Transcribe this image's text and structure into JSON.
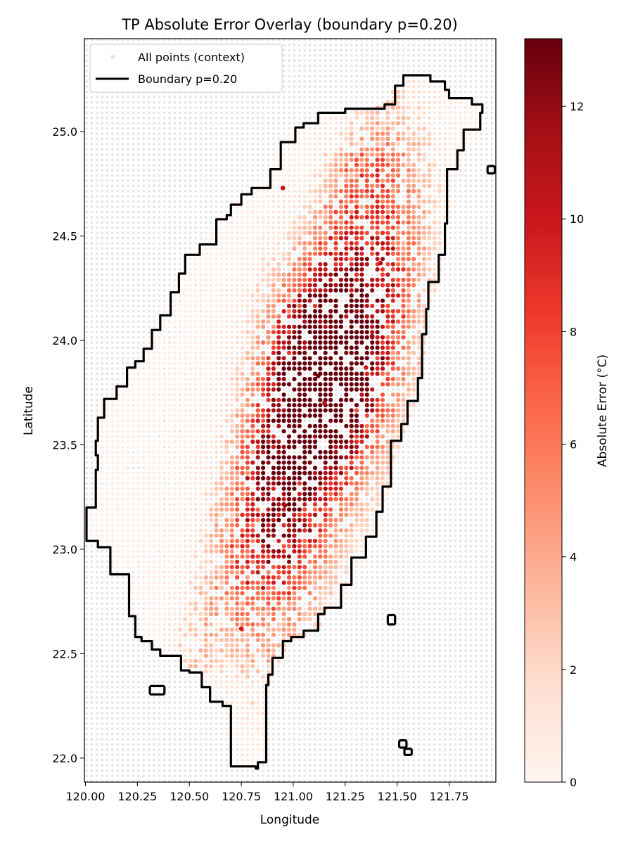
{
  "chart_data": {
    "type": "scatter",
    "title": "TP Absolute Error Overlay (boundary p=0.20)",
    "xlabel": "Longitude",
    "ylabel": "Latitude",
    "xlim": [
      119.995,
      121.975
    ],
    "ylim": [
      21.885,
      25.445
    ],
    "xticks": [
      120.0,
      120.25,
      120.5,
      120.75,
      121.0,
      121.25,
      121.5,
      121.75
    ],
    "xtick_labels": [
      "120.00",
      "120.25",
      "120.50",
      "120.75",
      "121.00",
      "121.25",
      "121.50",
      "121.75"
    ],
    "yticks": [
      22.0,
      22.5,
      23.0,
      23.5,
      24.0,
      24.5,
      25.0
    ],
    "ytick_labels": [
      "22.0",
      "22.5",
      "23.0",
      "23.5",
      "24.0",
      "24.5",
      "25.0"
    ],
    "grid": false,
    "legend": {
      "placement": "top-left",
      "entries": [
        {
          "label": "All points (context)",
          "color": "#e6e6e6"
        },
        {
          "label": "Boundary p=0.20",
          "color": "#000000"
        }
      ]
    },
    "colorbar": {
      "label": "Absolute Error (°C)",
      "range": [
        0,
        13.2
      ],
      "ticks": [
        0,
        2,
        4,
        6,
        8,
        10,
        12
      ],
      "tick_labels": [
        "0",
        "2",
        "4",
        "6",
        "8",
        "10",
        "12"
      ],
      "colormap": "Reds"
    },
    "grid_spacing_deg": 0.025,
    "series": [
      {
        "name": "All points (context)",
        "kind": "context-grid",
        "color": "#e6e6e6"
      },
      {
        "name": "Boundary p=0.20",
        "kind": "boundary-contour",
        "color": "#000000",
        "main_outline": [
          [
            120.005,
            23.04
          ],
          [
            120.06,
            23.04
          ],
          [
            120.06,
            23.01
          ],
          [
            120.12,
            23.01
          ],
          [
            120.16,
            22.88
          ],
          [
            120.21,
            22.88
          ],
          [
            120.24,
            22.68
          ],
          [
            120.27,
            22.58
          ],
          [
            120.32,
            22.56
          ],
          [
            120.36,
            22.52
          ],
          [
            120.46,
            22.49
          ],
          [
            120.5,
            22.42
          ],
          [
            120.56,
            22.41
          ],
          [
            120.6,
            22.34
          ],
          [
            120.66,
            22.27
          ],
          [
            120.7,
            22.25
          ],
          [
            120.71,
            21.96
          ],
          [
            120.82,
            21.96
          ],
          [
            120.83,
            21.95
          ],
          [
            120.87,
            21.98
          ],
          [
            120.88,
            22.35
          ],
          [
            120.9,
            22.4
          ],
          [
            120.95,
            22.48
          ],
          [
            120.99,
            22.56
          ],
          [
            121.05,
            22.58
          ],
          [
            121.12,
            22.61
          ],
          [
            121.15,
            22.69
          ],
          [
            121.23,
            22.72
          ],
          [
            121.28,
            22.83
          ],
          [
            121.35,
            22.96
          ],
          [
            121.4,
            23.06
          ],
          [
            121.43,
            23.18
          ],
          [
            121.47,
            23.3
          ],
          [
            121.52,
            23.52
          ],
          [
            121.55,
            23.6
          ],
          [
            121.6,
            23.71
          ],
          [
            121.62,
            23.82
          ],
          [
            121.64,
            24.03
          ],
          [
            121.65,
            24.15
          ],
          [
            121.7,
            24.28
          ],
          [
            121.73,
            24.41
          ],
          [
            121.74,
            24.56
          ],
          [
            121.79,
            24.82
          ],
          [
            121.82,
            24.91
          ],
          [
            121.9,
            25.01
          ],
          [
            121.91,
            25.09
          ],
          [
            121.86,
            25.13
          ],
          [
            121.8,
            25.16
          ],
          [
            121.75,
            25.16
          ],
          [
            121.73,
            25.2
          ],
          [
            121.66,
            25.24
          ],
          [
            121.6,
            25.27
          ],
          [
            121.53,
            25.27
          ],
          [
            121.49,
            25.22
          ],
          [
            121.44,
            25.13
          ],
          [
            121.37,
            25.11
          ],
          [
            121.25,
            25.11
          ],
          [
            121.12,
            25.09
          ],
          [
            121.05,
            25.04
          ],
          [
            121.01,
            25.02
          ],
          [
            120.94,
            24.95
          ],
          [
            120.89,
            24.82
          ],
          [
            120.8,
            24.73
          ],
          [
            120.75,
            24.7
          ],
          [
            120.7,
            24.65
          ],
          [
            120.68,
            24.6
          ],
          [
            120.63,
            24.58
          ],
          [
            120.55,
            24.46
          ],
          [
            120.48,
            24.41
          ],
          [
            120.45,
            24.32
          ],
          [
            120.41,
            24.23
          ],
          [
            120.36,
            24.12
          ],
          [
            120.32,
            24.05
          ],
          [
            120.28,
            23.96
          ],
          [
            120.24,
            23.9
          ],
          [
            120.2,
            23.87
          ],
          [
            120.15,
            23.78
          ],
          [
            120.09,
            23.72
          ],
          [
            120.06,
            23.63
          ],
          [
            120.05,
            23.52
          ],
          [
            120.06,
            23.45
          ],
          [
            120.05,
            23.38
          ],
          [
            120.05,
            23.2
          ],
          [
            120.005,
            23.2
          ],
          [
            120.005,
            23.04
          ]
        ],
        "islands": [
          {
            "lon": [
              121.455,
              121.49
            ],
            "lat": [
              22.64,
              22.685
            ]
          },
          {
            "lon": [
              120.31,
              120.38
            ],
            "lat": [
              22.305,
              22.345
            ]
          },
          {
            "lon": [
              121.51,
              121.545
            ],
            "lat": [
              22.05,
              22.085
            ]
          },
          {
            "lon": [
              121.535,
              121.57
            ],
            "lat": [
              22.015,
              22.045
            ]
          },
          {
            "lon": [
              121.935,
              121.97
            ],
            "lat": [
              24.8,
              24.835
            ]
          }
        ]
      },
      {
        "name": "Absolute Error",
        "kind": "error-field",
        "color": "#fee0d2",
        "hotspots": [
          {
            "lon": 121.0,
            "lat": 23.5,
            "error": 5.5
          },
          {
            "lon": 121.2,
            "lat": 23.7,
            "error": 7.5
          },
          {
            "lon": 120.95,
            "lat": 23.2,
            "error": 9.0
          },
          {
            "lon": 121.3,
            "lat": 24.0,
            "error": 8.5
          },
          {
            "lon": 121.4,
            "lat": 24.35,
            "error": 6.5
          },
          {
            "lon": 120.85,
            "lat": 22.8,
            "error": 5.0
          },
          {
            "lon": 121.1,
            "lat": 23.85,
            "error": 12.0
          },
          {
            "lon": 121.45,
            "lat": 24.8,
            "error": 4.0
          }
        ],
        "notable_points": [
          {
            "lon": 120.95,
            "lat": 24.73,
            "error": 10.5
          },
          {
            "lon": 121.12,
            "lat": 23.83,
            "error": 13.0
          },
          {
            "lon": 121.38,
            "lat": 24.02,
            "error": 12.0
          },
          {
            "lon": 121.42,
            "lat": 24.37,
            "error": 11.0
          },
          {
            "lon": 120.96,
            "lat": 23.21,
            "error": 11.5
          },
          {
            "lon": 120.75,
            "lat": 22.62,
            "error": 10.0
          },
          {
            "lon": 121.15,
            "lat": 23.7,
            "error": 10.5
          },
          {
            "lon": 121.35,
            "lat": 23.87,
            "error": 10.0
          }
        ]
      }
    ]
  }
}
